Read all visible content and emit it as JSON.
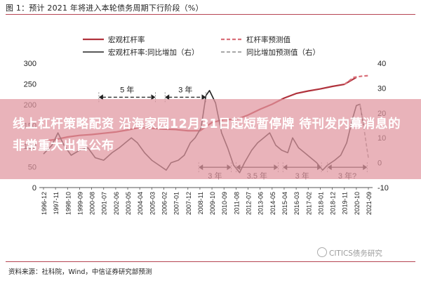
{
  "title": "图 1：预计 2021 年将进入本轮债务周期下行阶段（%）",
  "banner": {
    "text": "线上杠杆策略配资 沿海家园12月31日起短暂停牌 待刊发内幕消息的非常重大出售公布"
  },
  "source": "资料来源：社科院，Wind，中信证券研究部预测",
  "watermark": "CITICS债务研究",
  "chart_data": {
    "type": "line",
    "title": "",
    "xlabel": "",
    "ylabel": "",
    "ylabel_right": "",
    "x": [
      "1996-12",
      "1997-11",
      "1998-10",
      "1999-09",
      "2000-08",
      "2001-07",
      "2002-06",
      "2003-05",
      "2004-04",
      "2005-03",
      "2006-02",
      "2007-01",
      "2007-12",
      "2008-11",
      "2009-10",
      "2010-09",
      "2011-08",
      "2012-07",
      "2013-06",
      "2014-05",
      "2015-04",
      "2016-03",
      "2017-02",
      "2018-01",
      "2018-12",
      "2019-11",
      "2020-10",
      "2021-09"
    ],
    "ylim_left": [
      0,
      300
    ],
    "yticks_left": [
      0,
      50,
      100,
      150,
      200,
      250,
      300
    ],
    "ylim_right": [
      -10,
      40
    ],
    "yticks_right": [
      -10,
      0,
      10,
      20,
      30,
      40
    ],
    "legend": [
      "宏观杠杆率",
      "杠杆率预测值",
      "宏观杠杆率:同比增加（右）",
      "同比增加预测值（右）"
    ],
    "series": [
      {
        "name": "宏观杠杆率",
        "axis": "left",
        "color": "#b0323c",
        "dash": false,
        "points": [
          [
            0,
            112
          ],
          [
            1,
            116
          ],
          [
            2,
            122
          ],
          [
            3,
            126
          ],
          [
            4,
            128
          ],
          [
            5,
            131
          ],
          [
            6,
            134
          ],
          [
            7,
            139
          ],
          [
            8,
            145
          ],
          [
            9,
            143
          ],
          [
            10,
            141
          ],
          [
            11,
            140
          ],
          [
            12,
            137
          ],
          [
            13,
            137
          ],
          [
            14,
            157
          ],
          [
            15,
            164
          ],
          [
            16,
            164
          ],
          [
            17,
            175
          ],
          [
            18,
            189
          ],
          [
            19,
            201
          ],
          [
            20,
            216
          ],
          [
            21,
            227
          ],
          [
            22,
            233
          ],
          [
            23,
            238
          ],
          [
            24,
            244
          ],
          [
            25,
            249
          ],
          [
            26,
            266
          ]
        ]
      },
      {
        "name": "杠杆率预测值",
        "axis": "left",
        "color": "#d9707a",
        "dash": true,
        "points": [
          [
            25,
            249
          ],
          [
            25.8,
            266
          ],
          [
            26.5,
            269
          ],
          [
            27,
            270
          ]
        ]
      },
      {
        "name": "宏观杠杆率:同比增加（右）",
        "axis": "right",
        "color": "#222222",
        "dash": false,
        "points": [
          [
            0,
            3.5
          ],
          [
            0.7,
            7
          ],
          [
            1.2,
            12
          ],
          [
            1.7,
            7
          ],
          [
            2.3,
            3
          ],
          [
            3,
            5
          ],
          [
            3.7,
            6
          ],
          [
            4.3,
            2
          ],
          [
            5,
            1
          ],
          [
            5.7,
            4
          ],
          [
            6.3,
            6
          ],
          [
            6.8,
            8
          ],
          [
            7.3,
            10
          ],
          [
            7.8,
            8
          ],
          [
            8.4,
            4
          ],
          [
            9,
            1
          ],
          [
            9.6,
            -1
          ],
          [
            10.2,
            -3
          ],
          [
            10.6,
            0
          ],
          [
            11.2,
            1
          ],
          [
            11.7,
            3
          ],
          [
            12.2,
            8
          ],
          [
            12.6,
            10
          ],
          [
            13.1,
            14
          ],
          [
            13.5,
            27
          ],
          [
            13.8,
            29
          ],
          [
            14.3,
            24
          ],
          [
            14.8,
            12
          ],
          [
            15.3,
            6
          ],
          [
            15.8,
            -1
          ],
          [
            16.3,
            -4
          ],
          [
            16.7,
            0
          ],
          [
            17.3,
            5
          ],
          [
            17.8,
            8
          ],
          [
            18.3,
            10
          ],
          [
            18.8,
            12
          ],
          [
            19.3,
            7
          ],
          [
            19.8,
            5
          ],
          [
            20.3,
            4
          ],
          [
            20.7,
            10
          ],
          [
            21.2,
            6
          ],
          [
            21.7,
            4
          ],
          [
            22.2,
            2
          ],
          [
            22.7,
            0
          ],
          [
            23.2,
            -3
          ],
          [
            23.6,
            -1
          ],
          [
            24.2,
            1
          ],
          [
            24.7,
            3
          ],
          [
            25.2,
            8
          ],
          [
            25.7,
            18
          ],
          [
            26,
            23
          ],
          [
            26.3,
            23.5
          ],
          [
            26.6,
            15
          ]
        ]
      },
      {
        "name": "同比增加预测值（右）",
        "axis": "right",
        "color": "#8a8a8a",
        "dash": true,
        "points": [
          [
            26.3,
            23.5
          ],
          [
            26.6,
            15
          ],
          [
            26.9,
            5
          ],
          [
            27,
            2
          ]
        ]
      }
    ],
    "annotations": [
      {
        "label": "5 年",
        "y": 218,
        "from": 4.6,
        "to": 9.3
      },
      {
        "label": "3 年",
        "y": 218,
        "from": 10.1,
        "to": 13.5
      },
      {
        "label": "3 年",
        "y": 49,
        "from": 12.9,
        "to": 15.6
      },
      {
        "label": "3.5 年",
        "y": 49,
        "from": 16.0,
        "to": 19.5
      },
      {
        "label": "3 年",
        "y": 49,
        "from": 19.9,
        "to": 23.1
      },
      {
        "label": "3 年?",
        "y": 49,
        "from": 23.6,
        "to": 26.9
      }
    ]
  }
}
